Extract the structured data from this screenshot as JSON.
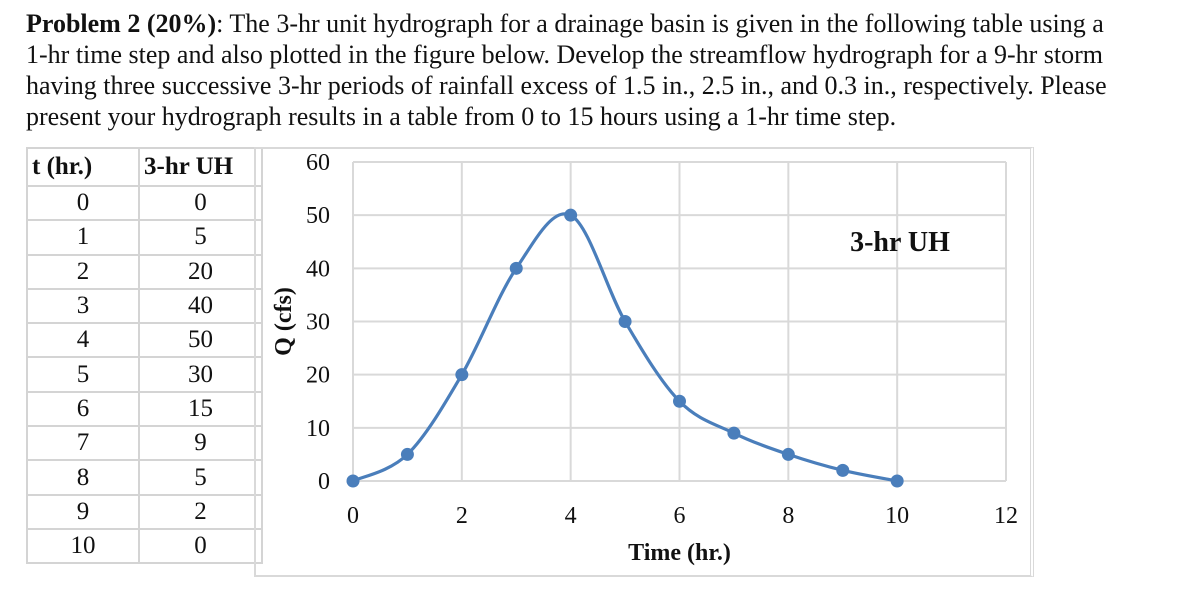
{
  "problem": {
    "label": "Problem 2 (20%)",
    "text": ": The 3-hr unit hydrograph for a drainage basin is given in the following table using a 1-hr time step and also plotted in the figure below. Develop the streamflow hydrograph for a 9-hr storm having three successive 3-hr periods of rainfall excess of 1.5 in., 2.5 in., and 0.3 in., respectively. Please present your hydrograph results in a table from 0 to 15 hours using a 1-hr time step.",
    "lines": [
      "The 3-hr unit hydrograph for a drainage basin is given in the following table using a",
      "1-hr time step and also plotted in the figure below. Develop the streamflow hydrograph for a 9-hr storm",
      "having three successive 3-hr periods of rainfall excess of 1.5 in., 2.5 in., and 0.3 in., respectively. Please",
      "present your hydrograph results in a table from 0 to 15 hours using a 1-hr time step."
    ]
  },
  "table": {
    "headers": [
      "t (hr.)",
      "3-hr UH"
    ],
    "rows": [
      [
        "0",
        "0"
      ],
      [
        "1",
        "5"
      ],
      [
        "2",
        "20"
      ],
      [
        "3",
        "40"
      ],
      [
        "4",
        "50"
      ],
      [
        "5",
        "30"
      ],
      [
        "6",
        "15"
      ],
      [
        "7",
        "9"
      ],
      [
        "8",
        "5"
      ],
      [
        "9",
        "2"
      ],
      [
        "10",
        "0"
      ]
    ]
  },
  "chart_data": {
    "type": "line",
    "title": "",
    "legend": [
      "3-hr UH"
    ],
    "legend_position": "inside-top-right",
    "xlabel": "Time (hr.)",
    "ylabel": "Q (cfs)",
    "xlim": [
      0,
      12
    ],
    "ylim": [
      0,
      60
    ],
    "xticks": [
      0,
      2,
      4,
      6,
      8,
      10,
      12
    ],
    "yticks": [
      0,
      10,
      20,
      30,
      40,
      50,
      60
    ],
    "grid": true,
    "smoothed": true,
    "markers": true,
    "series": [
      {
        "name": "3-hr UH",
        "color": "#4a7ebb",
        "x": [
          0,
          1,
          2,
          3,
          4,
          5,
          6,
          7,
          8,
          9,
          10
        ],
        "y": [
          0,
          5,
          20,
          40,
          50,
          30,
          15,
          9,
          5,
          2,
          0
        ]
      }
    ]
  },
  "colors": {
    "series": "#4a7ebb",
    "grid": "#d9d9d9",
    "table_border": "#d4d4d4"
  }
}
